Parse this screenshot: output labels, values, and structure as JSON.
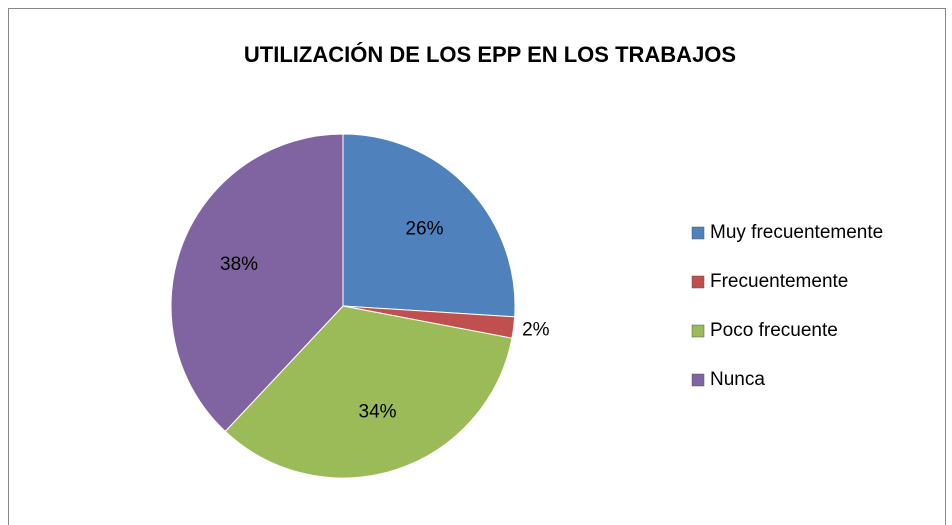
{
  "chart_data": {
    "type": "pie",
    "title": "UTILIZACIÓN DE LOS EPP EN LOS TRABAJOS",
    "categories": [
      "Muy frecuentemente",
      "Frecuentemente",
      "Poco frecuente",
      "Nunca"
    ],
    "values": [
      26,
      2,
      34,
      38
    ],
    "value_labels": [
      "26%",
      "2%",
      "34%",
      "38%"
    ],
    "colors": [
      "#4f81bd",
      "#c0504d",
      "#9bbb59",
      "#8064a2"
    ],
    "legend": "right"
  }
}
